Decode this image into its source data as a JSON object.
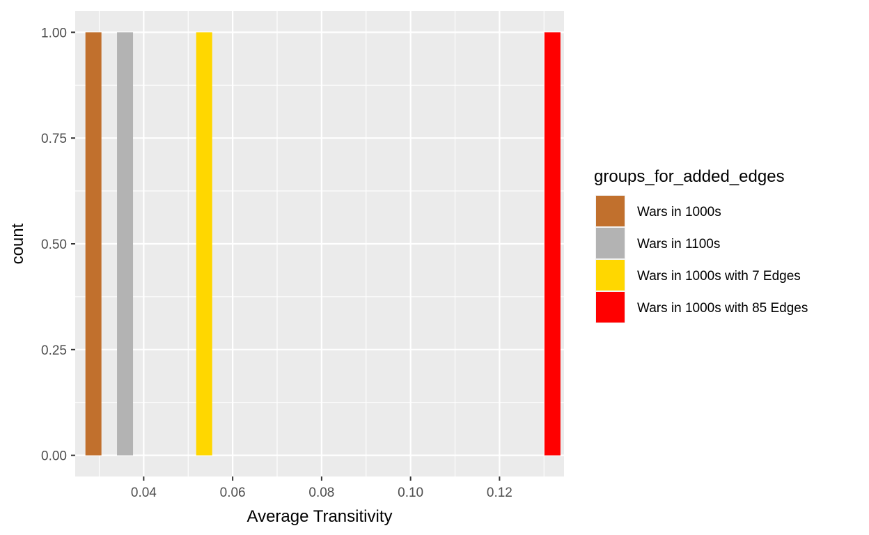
{
  "chart_data": {
    "type": "bar",
    "xlabel": "Average Transitivity",
    "ylabel": "count",
    "xlim": [
      0.0246,
      0.1345
    ],
    "ylim": [
      -0.05,
      1.05
    ],
    "x_ticks": [
      0.04,
      0.06,
      0.08,
      0.1,
      0.12
    ],
    "x_tick_labels": [
      "0.04",
      "0.06",
      "0.08",
      "0.10",
      "0.12"
    ],
    "y_ticks": [
      0,
      0.25,
      0.5,
      0.75,
      1
    ],
    "y_tick_labels": [
      "0.00",
      "0.25",
      "0.50",
      "0.75",
      "1.00"
    ],
    "bar_width": 0.0036,
    "grid": true,
    "legend": {
      "title": "groups_for_added_edges",
      "placement": "right"
    },
    "series": [
      {
        "name": "Wars in 1000s",
        "color": "#C1702D",
        "x": 0.0287,
        "count": 1
      },
      {
        "name": "Wars in 1100s",
        "color": "#B3B3B3",
        "x": 0.0358,
        "count": 1
      },
      {
        "name": "Wars in 1000s with 7 Edges",
        "color": "#FFD700",
        "x": 0.0536,
        "count": 1
      },
      {
        "name": "Wars in 1000s with 85 Edges",
        "color": "#FF0000",
        "x": 0.1319,
        "count": 1
      }
    ]
  }
}
